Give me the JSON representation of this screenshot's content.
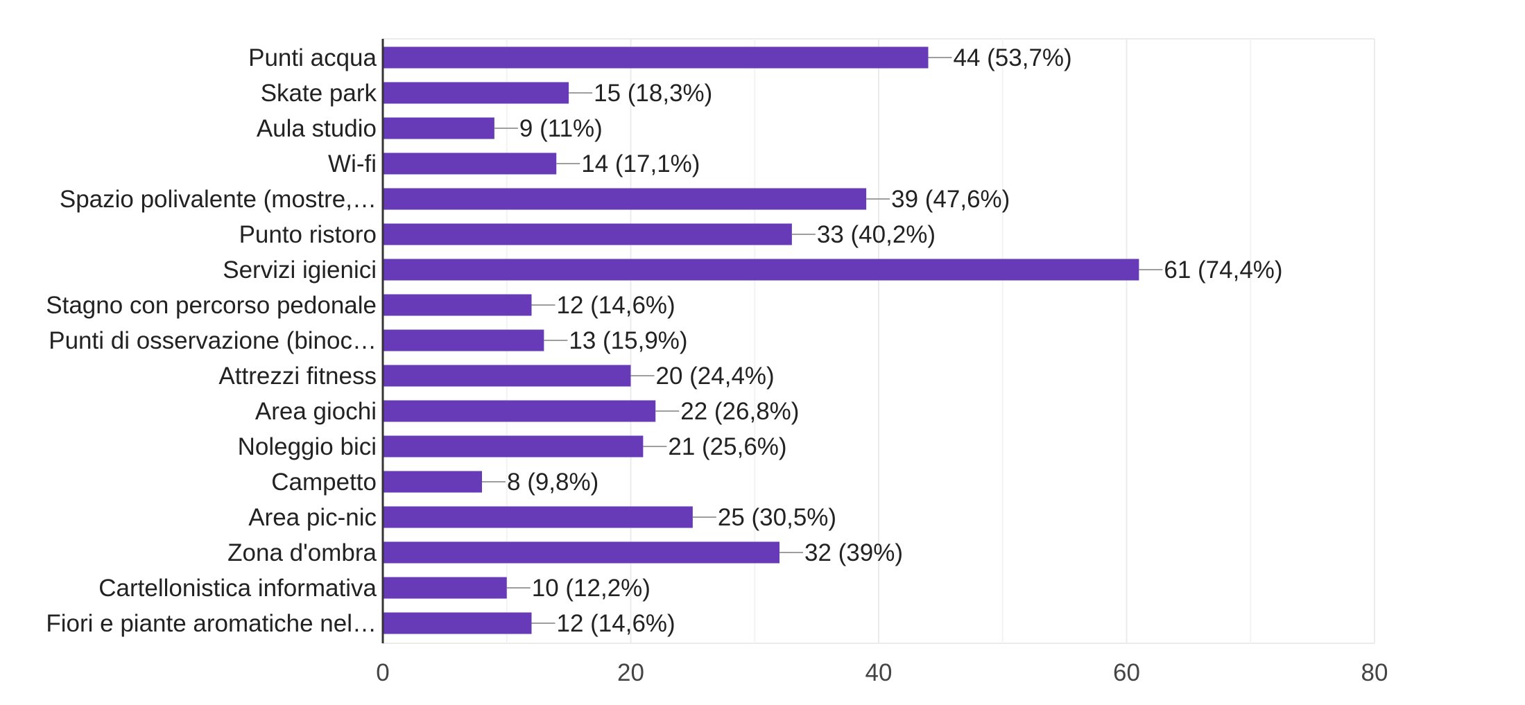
{
  "chart_data": {
    "type": "bar",
    "orientation": "horizontal",
    "categories": [
      "Punti acqua",
      "Skate park",
      "Aula studio",
      "Wi-fi",
      "Spazio polivalente (mostre,…",
      "Punto ristoro",
      "Servizi igienici",
      "Stagno con percorso pedonale",
      "Punti di osservazione (binoc…",
      "Attrezzi fitness",
      "Area giochi",
      "Noleggio bici",
      "Campetto",
      "Area pic-nic",
      "Zona d'ombra",
      "Cartellonistica informativa",
      "Fiori e piante aromatiche nel…"
    ],
    "values": [
      44,
      15,
      9,
      14,
      39,
      33,
      61,
      12,
      13,
      20,
      22,
      21,
      8,
      25,
      32,
      10,
      12
    ],
    "data_labels": [
      "44 (53,7%)",
      "15 (18,3%)",
      "9 (11%)",
      "14 (17,1%)",
      "39 (47,6%)",
      "33 (40,2%)",
      "61 (74,4%)",
      "12 (14,6%)",
      "13 (15,9%)",
      "20 (24,4%)",
      "22 (26,8%)",
      "21 (25,6%)",
      "8 (9,8%)",
      "25 (30,5%)",
      "32 (39%)",
      "10 (12,2%)",
      "12 (14,6%)"
    ],
    "xlim": [
      0,
      80
    ],
    "x_ticks": [
      0,
      20,
      40,
      60,
      80
    ],
    "x_tick_labels": [
      "0",
      "20",
      "40",
      "60",
      "80"
    ],
    "minor_gridlines": [
      10,
      30,
      50,
      70
    ],
    "grid": true,
    "bar_color": "#673ab7",
    "leader_line_color": "#9e9e9e",
    "grid_color": "#ebebeb",
    "axis_color": "#333333",
    "label_color": "#222222",
    "tick_label_color": "#444444"
  }
}
